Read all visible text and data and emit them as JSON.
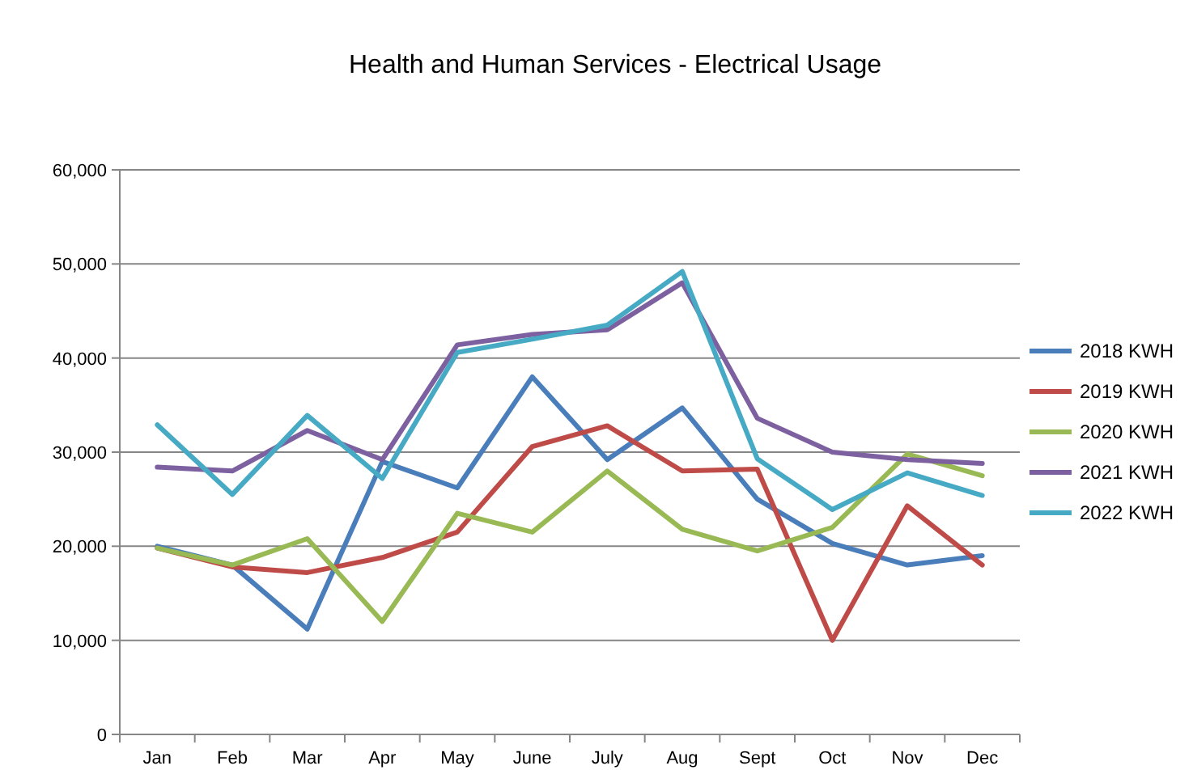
{
  "chart_data": {
    "type": "line",
    "title": "Health and Human Services - Electrical Usage",
    "categories": [
      "Jan",
      "Feb",
      "Mar",
      "Apr",
      "May",
      "June",
      "July",
      "Aug",
      "Sept",
      "Oct",
      "Nov",
      "Dec"
    ],
    "series": [
      {
        "name": "2018 KWH",
        "color": "#4a7ebb",
        "values": [
          20000,
          18000,
          11200,
          29000,
          26200,
          38000,
          29200,
          34700,
          25000,
          20300,
          18000,
          19000
        ]
      },
      {
        "name": "2019 KWH",
        "color": "#be4b48",
        "values": [
          19800,
          17800,
          17200,
          18800,
          21500,
          30600,
          32800,
          28000,
          28200,
          10000,
          24300,
          18000
        ]
      },
      {
        "name": "2020 KWH",
        "color": "#98b954",
        "values": [
          19800,
          18000,
          20800,
          12000,
          23500,
          21500,
          28000,
          21800,
          19500,
          22000,
          29800,
          27500
        ]
      },
      {
        "name": "2021 KWH",
        "color": "#7d60a0",
        "values": [
          28400,
          28000,
          32300,
          29200,
          41400,
          42500,
          43000,
          48000,
          33600,
          30000,
          29200,
          28800
        ]
      },
      {
        "name": "2022 KWH",
        "color": "#46aac5",
        "values": [
          32900,
          25500,
          33900,
          27200,
          40600,
          42000,
          43500,
          49200,
          29300,
          23900,
          27800,
          25400
        ]
      }
    ],
    "ylim": [
      0,
      60000
    ],
    "yticks": [
      {
        "value": 0,
        "label": "0"
      },
      {
        "value": 10000,
        "label": "10,000"
      },
      {
        "value": 20000,
        "label": "20,000"
      },
      {
        "value": 30000,
        "label": "30,000"
      },
      {
        "value": 40000,
        "label": "40,000"
      },
      {
        "value": 50000,
        "label": "50,000"
      },
      {
        "value": 60000,
        "label": "60,000"
      }
    ],
    "grid": "y",
    "legend": "right",
    "marker": "none",
    "line_style": "solid"
  }
}
